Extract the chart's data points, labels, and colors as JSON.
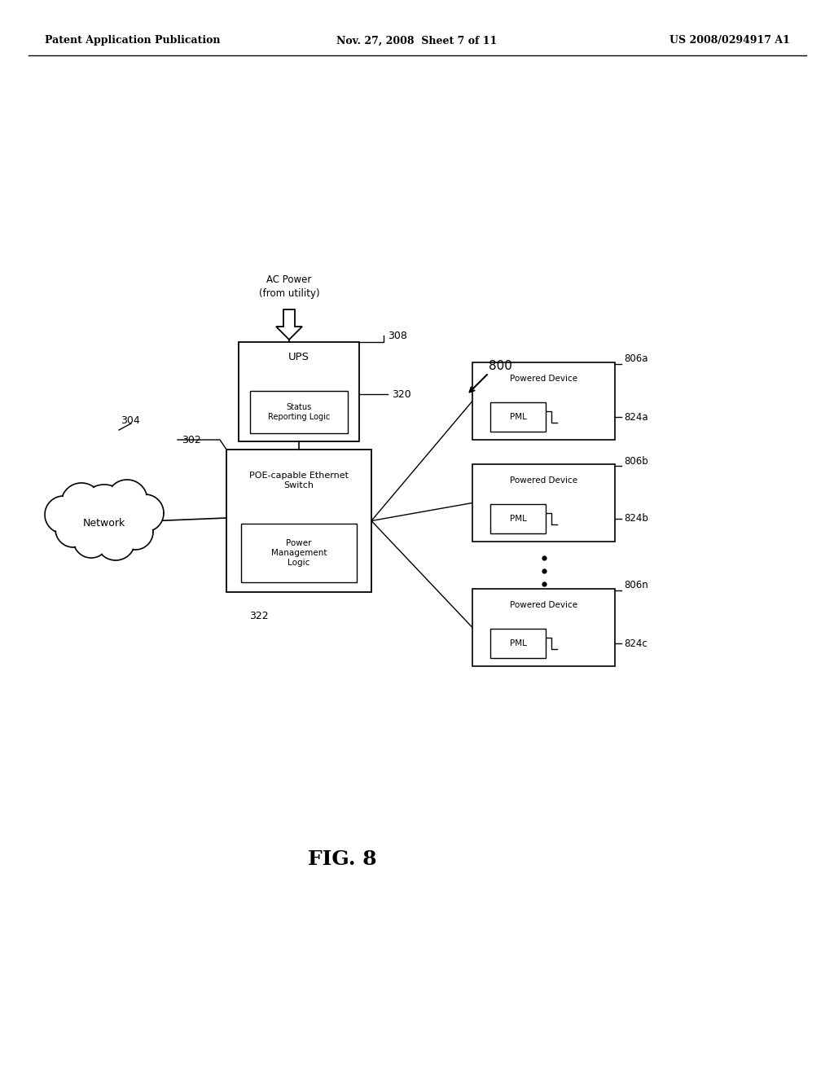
{
  "bg_color": "#ffffff",
  "header_left": "Patent Application Publication",
  "header_mid": "Nov. 27, 2008  Sheet 7 of 11",
  "header_right": "US 2008/0294917 A1",
  "fig_label": "FIG. 8",
  "figure_number": "800",
  "labels": {
    "ac_power": "AC Power\n(from utility)",
    "ups_label": "UPS",
    "status_logic": "Status\nReporting Logic",
    "switch_label": "POE-capable Ethernet\nSwitch",
    "power_logic": "Power\nManagement\nLogic",
    "network_label": "Network",
    "pd_label": "Powered Device",
    "pml_label": "PML"
  },
  "ref_numbers": {
    "ups": "308",
    "status_connection": "320",
    "switch": "302",
    "power_logic": "322",
    "network": "304",
    "pd_a": "806a",
    "pml_a": "824a",
    "pd_b": "806b",
    "pml_b": "824b",
    "pd_n": "806n",
    "pml_c": "824c"
  },
  "colors": {
    "box": "#000000",
    "text": "#000000",
    "bg": "#ffffff"
  }
}
